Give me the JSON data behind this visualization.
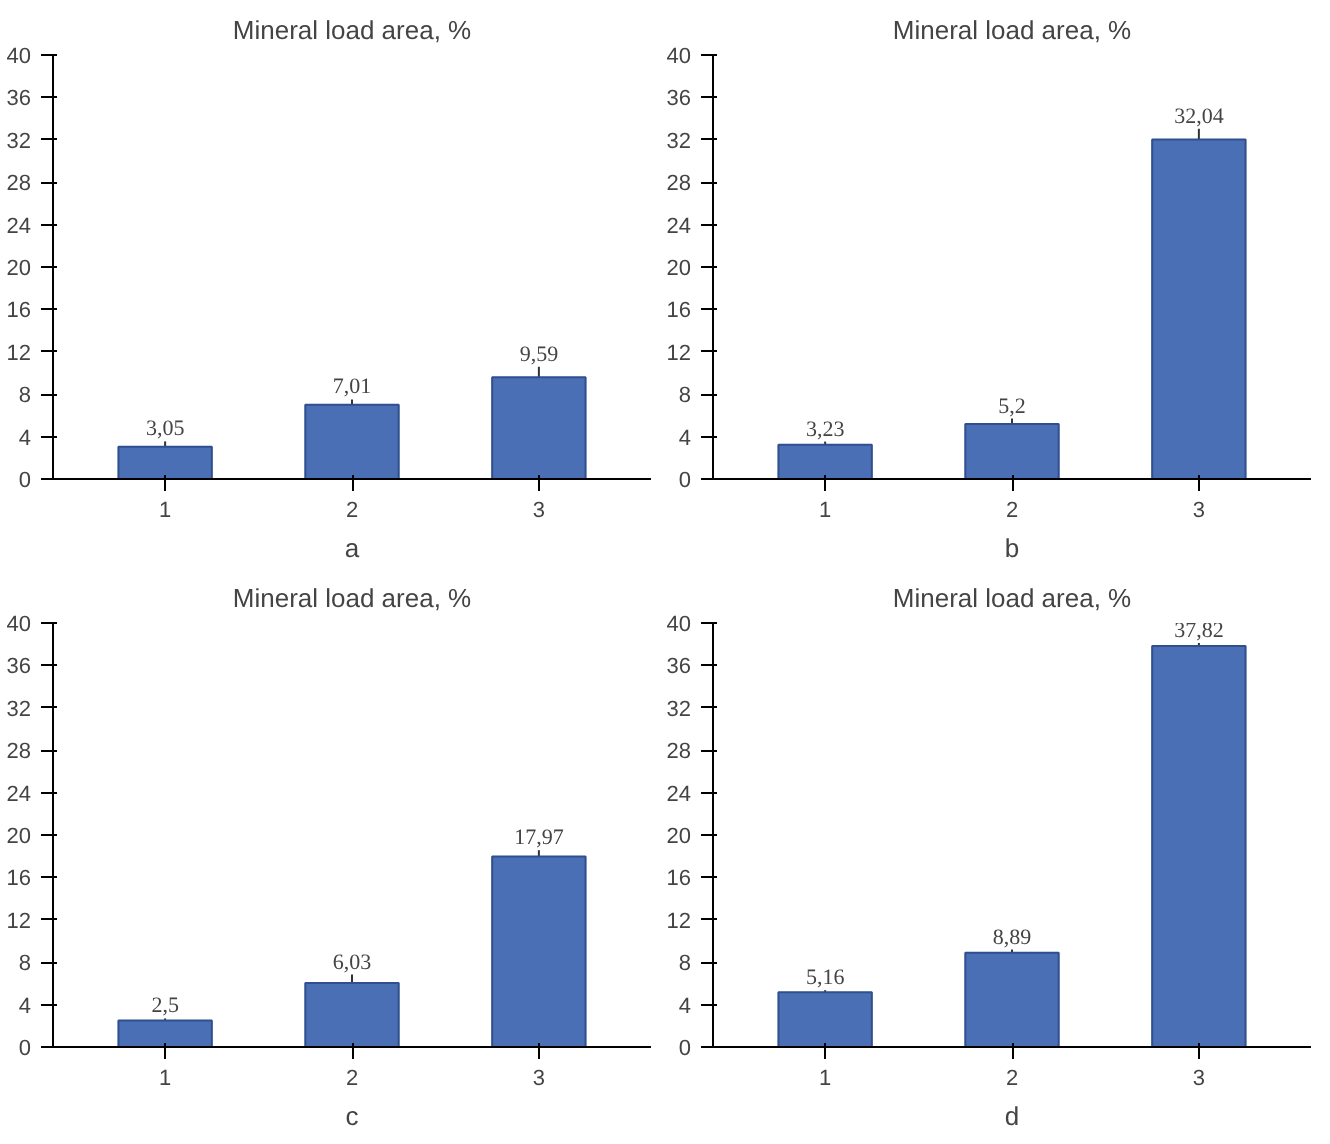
{
  "chart_data": [
    {
      "type": "bar",
      "title": "Mineral load area, %",
      "xlabel": "a",
      "categories": [
        "1",
        "2",
        "3"
      ],
      "values": [
        3.05,
        7.01,
        9.59
      ],
      "errors": [
        0.5,
        0.5,
        1.0
      ],
      "value_labels": [
        "3,05",
        "7,01",
        "9,59"
      ],
      "color": "#4a6fb5",
      "ylim": [
        0,
        40
      ],
      "yticks": [
        0,
        4,
        8,
        12,
        16,
        20,
        24,
        28,
        32,
        36,
        40
      ],
      "grid": false
    },
    {
      "type": "bar",
      "title": "Mineral load area, %",
      "xlabel": "b",
      "categories": [
        "1",
        "2",
        "3"
      ],
      "values": [
        3.23,
        5.2,
        32.04
      ],
      "errors": [
        0.3,
        0.5,
        1.0
      ],
      "value_labels": [
        "3,23",
        "5,2",
        "32,04"
      ],
      "color": "#4a6fb5",
      "ylim": [
        0,
        40
      ],
      "yticks": [
        0,
        4,
        8,
        12,
        16,
        20,
        24,
        28,
        32,
        36,
        40
      ],
      "grid": false
    },
    {
      "type": "bar",
      "title": "Mineral load area, %",
      "xlabel": "c",
      "categories": [
        "1",
        "2",
        "3"
      ],
      "values": [
        2.5,
        6.03,
        17.97
      ],
      "errors": [
        0.2,
        0.8,
        0.6
      ],
      "value_labels": [
        "2,5",
        "6,03",
        "17,97"
      ],
      "color": "#4a6fb5",
      "ylim": [
        0,
        40
      ],
      "yticks": [
        0,
        4,
        8,
        12,
        16,
        20,
        24,
        28,
        32,
        36,
        40
      ],
      "grid": false
    },
    {
      "type": "bar",
      "title": "Mineral load area, %",
      "xlabel": "d",
      "categories": [
        "1",
        "2",
        "3"
      ],
      "values": [
        5.16,
        8.89,
        37.82
      ],
      "errors": [
        0.2,
        0.3,
        0.3
      ],
      "value_labels": [
        "5,16",
        "8,89",
        "37,82"
      ],
      "color": "#4a6fb5",
      "ylim": [
        0,
        40
      ],
      "yticks": [
        0,
        4,
        8,
        12,
        16,
        20,
        24,
        28,
        32,
        36,
        40
      ],
      "grid": false
    }
  ]
}
